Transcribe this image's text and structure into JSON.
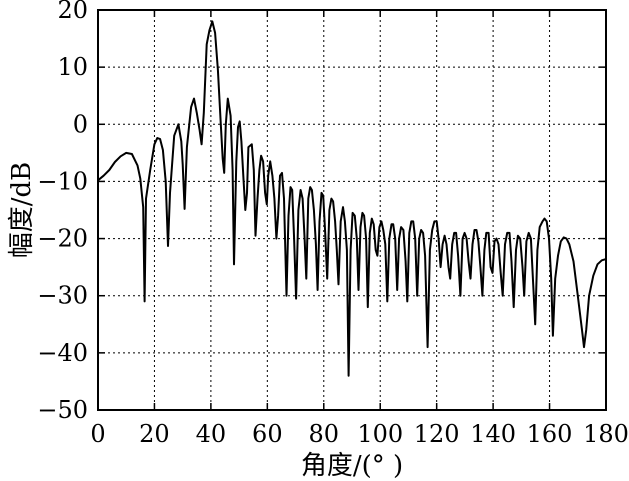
{
  "chart_data": {
    "type": "line",
    "xlabel": "角度/(°  )",
    "ylabel": "幅度/dB",
    "xlim": [
      0,
      180
    ],
    "ylim": [
      -50,
      20
    ],
    "xticks": [
      0,
      20,
      40,
      60,
      80,
      100,
      120,
      140,
      160,
      180
    ],
    "yticks": [
      20,
      10,
      0,
      -10,
      -20,
      -30,
      -40,
      -50
    ],
    "grid": "dotted",
    "legend": "none",
    "series": [
      {
        "color": "#000000",
        "points": [
          [
            0,
            -9.8
          ],
          [
            2,
            -9
          ],
          [
            4,
            -8
          ],
          [
            6,
            -6.6
          ],
          [
            8,
            -5.6
          ],
          [
            10,
            -5
          ],
          [
            12,
            -5.2
          ],
          [
            14,
            -7.2
          ],
          [
            15,
            -9.5
          ],
          [
            16,
            -14.5
          ],
          [
            16.5,
            -31
          ],
          [
            17,
            -13
          ],
          [
            18.5,
            -8
          ],
          [
            20,
            -3.5
          ],
          [
            21,
            -2.4
          ],
          [
            22,
            -2.6
          ],
          [
            23,
            -4.5
          ],
          [
            24,
            -10
          ],
          [
            24.8,
            -21.3
          ],
          [
            25.5,
            -12
          ],
          [
            27,
            -2
          ],
          [
            28.5,
            0
          ],
          [
            29.5,
            -3
          ],
          [
            30,
            -7
          ],
          [
            30.7,
            -14.8
          ],
          [
            31.5,
            -4
          ],
          [
            33,
            3
          ],
          [
            34,
            4.5
          ],
          [
            35,
            2
          ],
          [
            36,
            -1
          ],
          [
            36.7,
            -3.5
          ],
          [
            37.5,
            2
          ],
          [
            38.5,
            14
          ],
          [
            39.5,
            16.5
          ],
          [
            40.5,
            18
          ],
          [
            41.5,
            16
          ],
          [
            42.5,
            9.5
          ],
          [
            43.5,
            0
          ],
          [
            44.2,
            -6
          ],
          [
            44.7,
            -8.5
          ],
          [
            45.3,
            0
          ],
          [
            46,
            4.5
          ],
          [
            47,
            1.5
          ],
          [
            47.7,
            -8
          ],
          [
            48.2,
            -24.5
          ],
          [
            49,
            -6.5
          ],
          [
            49.6,
            -0.5
          ],
          [
            50.2,
            0.5
          ],
          [
            50.8,
            -3
          ],
          [
            51.5,
            -9
          ],
          [
            52.2,
            -15
          ],
          [
            52.8,
            -12
          ],
          [
            53.3,
            -4
          ],
          [
            54.5,
            -3.5
          ],
          [
            55.2,
            -8
          ],
          [
            55.8,
            -19.5
          ],
          [
            56.5,
            -13
          ],
          [
            57.2,
            -8
          ],
          [
            57.8,
            -5.5
          ],
          [
            58.5,
            -6.5
          ],
          [
            59.2,
            -12
          ],
          [
            59.8,
            -14
          ],
          [
            60.3,
            -9
          ],
          [
            61,
            -6.5
          ],
          [
            61.8,
            -9
          ],
          [
            62.5,
            -13
          ],
          [
            63.2,
            -20
          ],
          [
            63.8,
            -16
          ],
          [
            64.5,
            -9
          ],
          [
            65.2,
            -8.5
          ],
          [
            65.9,
            -13
          ],
          [
            66.8,
            -30
          ],
          [
            67.5,
            -16
          ],
          [
            68.2,
            -11
          ],
          [
            68.8,
            -11.5
          ],
          [
            69.5,
            -20
          ],
          [
            70.2,
            -30.5
          ],
          [
            71,
            -15
          ],
          [
            71.8,
            -11.5
          ],
          [
            72.5,
            -13
          ],
          [
            73.2,
            -20
          ],
          [
            73.8,
            -27
          ],
          [
            74.5,
            -13
          ],
          [
            75.2,
            -11
          ],
          [
            75.8,
            -11.5
          ],
          [
            76.5,
            -15
          ],
          [
            77.2,
            -21
          ],
          [
            77.8,
            -29
          ],
          [
            78.5,
            -17
          ],
          [
            79.2,
            -12
          ],
          [
            79.8,
            -12.5
          ],
          [
            80.5,
            -19
          ],
          [
            81.2,
            -27
          ],
          [
            82,
            -15
          ],
          [
            82.7,
            -13
          ],
          [
            83.3,
            -13.5
          ],
          [
            84,
            -17
          ],
          [
            84.6,
            -22
          ],
          [
            85.2,
            -28
          ],
          [
            86,
            -17
          ],
          [
            86.8,
            -14.5
          ],
          [
            87.5,
            -17
          ],
          [
            88.2,
            -22
          ],
          [
            88.8,
            -44
          ],
          [
            89.5,
            -22
          ],
          [
            90.2,
            -15.5
          ],
          [
            91,
            -16
          ],
          [
            91.7,
            -20
          ],
          [
            92.3,
            -29
          ],
          [
            93,
            -18
          ],
          [
            93.7,
            -15.5
          ],
          [
            94.3,
            -16
          ],
          [
            95,
            -20
          ],
          [
            95.6,
            -32
          ],
          [
            96.3,
            -19
          ],
          [
            97,
            -16.5
          ],
          [
            97.7,
            -17.5
          ],
          [
            98.4,
            -22
          ],
          [
            99,
            -23
          ],
          [
            99.7,
            -18
          ],
          [
            100.4,
            -17
          ],
          [
            101.1,
            -18.5
          ],
          [
            101.8,
            -21
          ],
          [
            102.5,
            -31
          ],
          [
            103.2,
            -20
          ],
          [
            104,
            -17.5
          ],
          [
            104.6,
            -17.5
          ],
          [
            105.3,
            -20
          ],
          [
            106,
            -29
          ],
          [
            106.7,
            -20
          ],
          [
            107.4,
            -18
          ],
          [
            108.2,
            -18.5
          ],
          [
            109,
            -24
          ],
          [
            109.6,
            -31
          ],
          [
            110.3,
            -19
          ],
          [
            111,
            -17
          ],
          [
            111.7,
            -17
          ],
          [
            112.4,
            -20
          ],
          [
            113.1,
            -30
          ],
          [
            113.8,
            -20
          ],
          [
            114.5,
            -18.5
          ],
          [
            115.2,
            -19
          ],
          [
            115.9,
            -23
          ],
          [
            116.8,
            -39
          ],
          [
            117.6,
            -22
          ],
          [
            118.4,
            -18.5
          ],
          [
            119.2,
            -17
          ],
          [
            120,
            -17
          ],
          [
            120.7,
            -20
          ],
          [
            121.4,
            -25
          ],
          [
            122.1,
            -21
          ],
          [
            122.8,
            -19.5
          ],
          [
            123.5,
            -21
          ],
          [
            124.2,
            -25
          ],
          [
            124.8,
            -27
          ],
          [
            125.5,
            -21
          ],
          [
            126.2,
            -19
          ],
          [
            126.9,
            -19
          ],
          [
            127.6,
            -23
          ],
          [
            128.4,
            -30
          ],
          [
            129.2,
            -20
          ],
          [
            129.9,
            -19
          ],
          [
            130.6,
            -20
          ],
          [
            131.3,
            -24
          ],
          [
            132,
            -27
          ],
          [
            132.7,
            -21
          ],
          [
            133.4,
            -18.5
          ],
          [
            134.1,
            -18.5
          ],
          [
            134.8,
            -20.5
          ],
          [
            135.5,
            -25
          ],
          [
            136.2,
            -30
          ],
          [
            136.9,
            -22
          ],
          [
            137.6,
            -19
          ],
          [
            138.4,
            -19
          ],
          [
            139.1,
            -25
          ],
          [
            139.8,
            -26
          ],
          [
            140.5,
            -20.5
          ],
          [
            141.2,
            -20
          ],
          [
            141.9,
            -21
          ],
          [
            142.7,
            -26
          ],
          [
            143.4,
            -30
          ],
          [
            144.2,
            -21
          ],
          [
            145,
            -19
          ],
          [
            145.8,
            -19
          ],
          [
            146.5,
            -24
          ],
          [
            147.3,
            -32
          ],
          [
            148.1,
            -22
          ],
          [
            148.8,
            -19.5
          ],
          [
            149.6,
            -20
          ],
          [
            150.4,
            -25
          ],
          [
            151,
            -30
          ],
          [
            151.8,
            -20.5
          ],
          [
            152.6,
            -19
          ],
          [
            153.4,
            -20
          ],
          [
            154.2,
            -28
          ],
          [
            154.9,
            -35
          ],
          [
            155.7,
            -22
          ],
          [
            156.5,
            -18
          ],
          [
            157.5,
            -17
          ],
          [
            158.2,
            -16.5
          ],
          [
            159,
            -17
          ],
          [
            159.8,
            -20
          ],
          [
            160.6,
            -27
          ],
          [
            161.2,
            -37
          ],
          [
            162,
            -27
          ],
          [
            163,
            -23
          ],
          [
            164,
            -20.5
          ],
          [
            165,
            -19.8
          ],
          [
            166,
            -20
          ],
          [
            167,
            -21
          ],
          [
            168.5,
            -24
          ],
          [
            170,
            -30
          ],
          [
            171.5,
            -36
          ],
          [
            172.2,
            -39
          ],
          [
            173,
            -36
          ],
          [
            174,
            -30
          ],
          [
            175.5,
            -26.5
          ],
          [
            177,
            -24.5
          ],
          [
            178.5,
            -23.8
          ],
          [
            180,
            -23.6
          ]
        ]
      }
    ]
  }
}
